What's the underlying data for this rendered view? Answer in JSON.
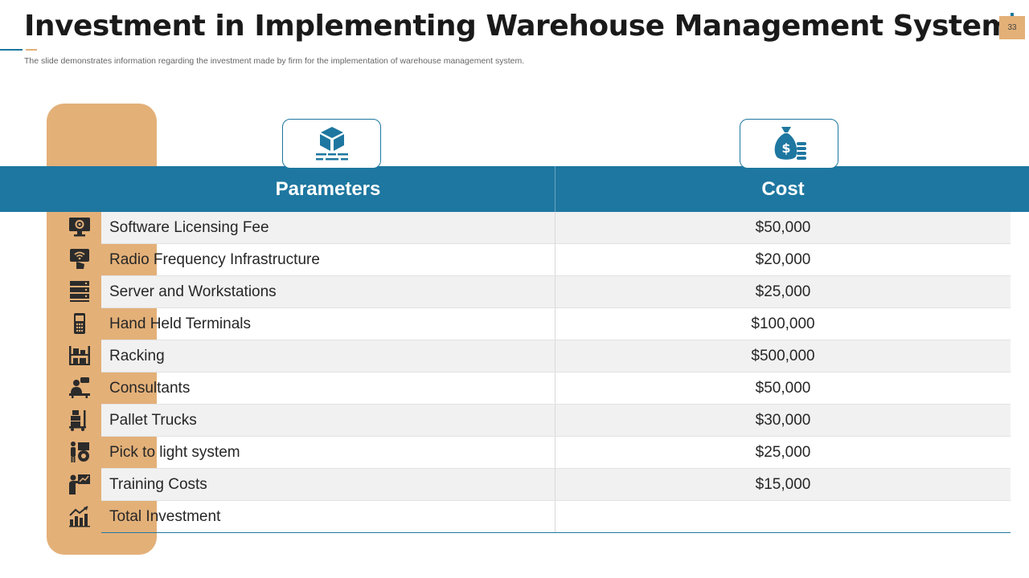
{
  "header": {
    "title": "Investment in Implementing Warehouse Management System",
    "subtitle": "The slide demonstrates information regarding the investment made by firm for the  implementation of warehouse management system.",
    "page_number": "33"
  },
  "colors": {
    "accent_blue": "#1e77a0",
    "accent_tan": "#e3b078",
    "row_alt": "#f1f1f1"
  },
  "table": {
    "headers": {
      "parameters": "Parameters",
      "cost": "Cost"
    },
    "header_icons": {
      "parameters": "package-icon",
      "cost": "money-bag-icon"
    },
    "rows": [
      {
        "parameter": "Software Licensing  Fee",
        "cost": "$50,000",
        "icon": "monitor-settings-icon"
      },
      {
        "parameter": "Radio Frequency  Infrastructure",
        "cost": "$20,000",
        "icon": "wireless-hand-icon"
      },
      {
        "parameter": "Server and Workstations",
        "cost": "$25,000",
        "icon": "server-icon"
      },
      {
        "parameter": "Hand Held  Terminals",
        "cost": "$100,000",
        "icon": "handheld-terminal-icon"
      },
      {
        "parameter": "Racking",
        "cost": "$500,000",
        "icon": "rack-shelf-icon"
      },
      {
        "parameter": "Consultants",
        "cost": "$50,000",
        "icon": "consultant-icon"
      },
      {
        "parameter": "Pallet Trucks",
        "cost": "$30,000",
        "icon": "pallet-truck-icon"
      },
      {
        "parameter": "Pick to light system",
        "cost": "$25,000",
        "icon": "pick-to-light-icon"
      },
      {
        "parameter": "Training  Costs",
        "cost": "$15,000",
        "icon": "training-presentation-icon"
      },
      {
        "parameter": "Total Investment",
        "cost": "",
        "icon": "investment-growth-icon"
      }
    ]
  }
}
